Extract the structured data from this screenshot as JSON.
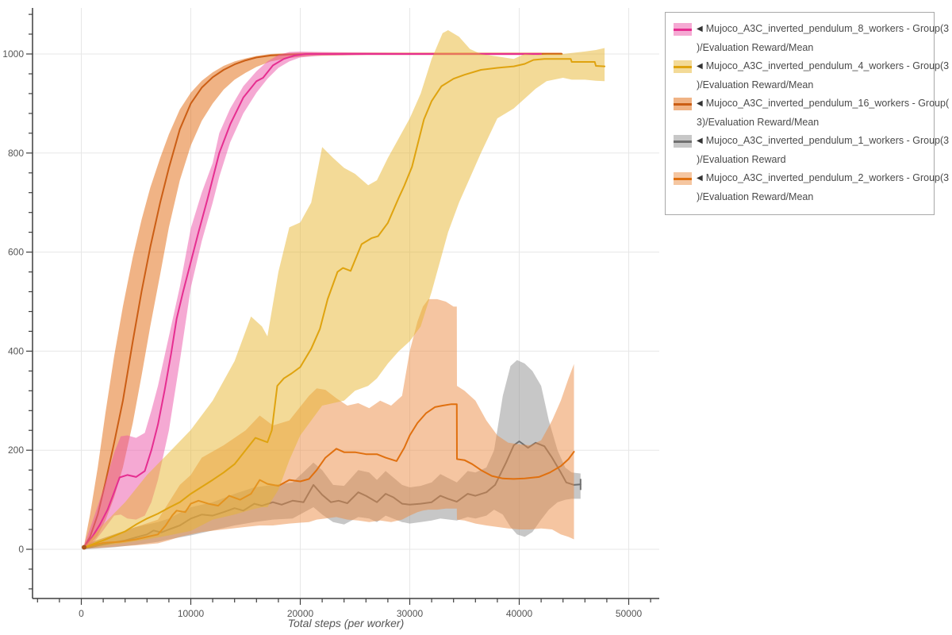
{
  "legend_marker": "◀",
  "chart_data": {
    "type": "line",
    "title": "",
    "xlabel": "Total steps (per worker)",
    "ylabel": "",
    "x_ticks": [
      0,
      10000,
      20000,
      30000,
      40000,
      50000
    ],
    "x_tick_labels": [
      "0",
      "10000",
      "20000",
      "30000",
      "40000",
      "50000"
    ],
    "y_ticks": [
      0,
      200,
      400,
      600,
      800,
      1000
    ],
    "y_tick_labels": [
      "0",
      "200",
      "400",
      "600",
      "800",
      "1000"
    ],
    "x_range": [
      -4450,
      52700
    ],
    "y_range": [
      -100,
      1095
    ],
    "x_minor_step": 2000,
    "y_minor_step": 40,
    "grid": true,
    "legend_position": "top-right",
    "grid_color": "#e7e7e7",
    "axis_color": "#3d3d3d",
    "start_marker": {
      "x": 250,
      "y": 4,
      "color": "#a8561c"
    },
    "series": [
      {
        "id": "w8",
        "label": "Mujoco_A3C_inverted_pendulum_8_workers - Group(3)/Evaluation Reward/Mean",
        "legend_lines": [
          "Mujoco_A3C_inverted_pendulum_8_workers - Group(3",
          ")/Evaluation Reward/Mean"
        ],
        "line_color": "#e62e90",
        "band_color": "#eb53a7",
        "x": [
          250,
          1000,
          1700,
          2400,
          3000,
          3500,
          4200,
          5000,
          5800,
          6400,
          7000,
          7600,
          8200,
          8700,
          9300,
          10000,
          10700,
          11500,
          12600,
          13600,
          14800,
          16000,
          16600,
          17500,
          18500,
          19500,
          20500,
          22000,
          26000,
          30000,
          34000,
          38000,
          42000
        ],
        "y": [
          4,
          25,
          50,
          80,
          115,
          145,
          150,
          146,
          158,
          200,
          252,
          320,
          395,
          465,
          520,
          580,
          640,
          705,
          800,
          858,
          912,
          945,
          952,
          977,
          990,
          997,
          1000,
          1000,
          1000,
          1000,
          1000,
          1000,
          1000
        ],
        "band_x": [
          250,
          1000,
          2000,
          3000,
          3600,
          4200,
          5000,
          5800,
          6400,
          7000,
          8000,
          9000,
          10000,
          11000,
          12000,
          12600,
          13600,
          14800,
          16000,
          17000,
          18000,
          19000,
          20000,
          22000,
          26000,
          30000,
          35000,
          40000,
          42000
        ],
        "band_upper": [
          8,
          55,
          120,
          195,
          228,
          230,
          225,
          235,
          280,
          330,
          430,
          530,
          648,
          720,
          780,
          840,
          890,
          935,
          965,
          985,
          998,
          1004,
          1005,
          1004,
          1003,
          1002,
          1002,
          1002,
          1002
        ],
        "band_lower": [
          1,
          10,
          38,
          68,
          70,
          62,
          60,
          68,
          95,
          140,
          240,
          380,
          528,
          622,
          700,
          752,
          822,
          880,
          922,
          950,
          972,
          985,
          993,
          997,
          998,
          998,
          998,
          998,
          998
        ]
      },
      {
        "id": "w4",
        "label": "Mujoco_A3C_inverted_pendulum_4_workers - Group(3)/Evaluation Reward/Mean",
        "legend_lines": [
          "Mujoco_A3C_inverted_pendulum_4_workers - Group(3",
          ")/Evaluation Reward/Mean"
        ],
        "line_color": "#dfa30f",
        "band_color": "#e7b52f",
        "x": [
          250,
          1000,
          2000,
          3000,
          4000,
          5000,
          6000,
          7000,
          8000,
          9000,
          10000,
          11000,
          12000,
          13000,
          14000,
          15000,
          15900,
          17000,
          17400,
          17900,
          18500,
          19200,
          20000,
          21000,
          21800,
          22500,
          23400,
          23900,
          24600,
          25600,
          26500,
          27100,
          28000,
          29000,
          29500,
          30200,
          31300,
          32000,
          32900,
          34000,
          35000,
          36500,
          38000,
          39500,
          40500,
          41300,
          42300,
          43500,
          44700,
          44800,
          46000,
          46900,
          47000,
          47800
        ],
        "y": [
          3,
          10,
          18,
          27,
          36,
          50,
          62,
          72,
          84,
          95,
          112,
          126,
          140,
          155,
          172,
          200,
          225,
          216,
          240,
          330,
          345,
          355,
          368,
          405,
          445,
          505,
          560,
          568,
          562,
          616,
          628,
          632,
          659,
          710,
          734,
          772,
          868,
          905,
          935,
          950,
          958,
          968,
          972,
          975,
          980,
          988,
          990,
          990,
          990,
          984,
          984,
          984,
          976,
          975
        ],
        "band_x": [
          250,
          1000,
          2000,
          4000,
          6000,
          8000,
          10000,
          12000,
          14000,
          15500,
          16500,
          17000,
          18000,
          19000,
          20000,
          21000,
          22000,
          23000,
          24000,
          25000,
          26200,
          27000,
          28000,
          29000,
          30000,
          31000,
          32000,
          33000,
          33500,
          34500,
          35500,
          36500,
          38000,
          39500,
          40500,
          41500,
          42500,
          44000,
          44800,
          46000,
          47000,
          47800
        ],
        "band_upper": [
          6,
          25,
          50,
          95,
          150,
          195,
          241,
          300,
          380,
          470,
          450,
          430,
          560,
          650,
          660,
          700,
          812,
          790,
          770,
          758,
          735,
          745,
          790,
          830,
          870,
          920,
          990,
          1042,
          1048,
          1035,
          1010,
          1000,
          995,
          990,
          1000,
          998,
          1000,
          1000,
          1002,
          1005,
          1008,
          1012
        ],
        "band_lower": [
          1,
          4,
          7,
          13,
          20,
          28,
          37,
          60,
          70,
          80,
          85,
          85,
          120,
          180,
          230,
          260,
          290,
          295,
          300,
          320,
          330,
          345,
          375,
          400,
          420,
          450,
          520,
          600,
          640,
          700,
          750,
          800,
          870,
          890,
          910,
          930,
          945,
          952,
          948,
          948,
          946,
          945
        ]
      },
      {
        "id": "w16",
        "label": "Mujoco_A3C_inverted_pendulum_16_workers - Group(3)/Evaluation Reward/Mean",
        "legend_lines": [
          "Mujoco_A3C_inverted_pendulum_16_workers - Group(",
          "3)/Evaluation Reward/Mean"
        ],
        "line_color": "#cb5e15",
        "band_color": "#e1670b",
        "x": [
          250,
          800,
          1500,
          2200,
          3000,
          3800,
          4700,
          5500,
          6300,
          7200,
          8000,
          9000,
          10000,
          11000,
          12000,
          13000,
          14000,
          15000,
          16000,
          17300,
          19000,
          21000,
          26000,
          32000,
          38000,
          43900
        ],
        "y": [
          4,
          25,
          70,
          135,
          215,
          300,
          420,
          520,
          610,
          700,
          770,
          848,
          900,
          932,
          953,
          968,
          979,
          987,
          993,
          997,
          999,
          1000,
          1000,
          1000,
          1000,
          1000
        ],
        "band_x": [
          250,
          800,
          1500,
          2200,
          3000,
          3800,
          4700,
          5500,
          6300,
          7200,
          8000,
          9000,
          10000,
          11000,
          12000,
          13000,
          14000,
          15000,
          16000,
          17300,
          19000,
          21000,
          26000,
          32000,
          38000,
          43900
        ],
        "band_upper": [
          8,
          70,
          165,
          275,
          390,
          490,
          590,
          665,
          730,
          790,
          838,
          888,
          922,
          946,
          963,
          976,
          985,
          991,
          996,
          1000,
          1002,
          1003,
          1003,
          1003,
          1003,
          1003
        ],
        "band_lower": [
          1,
          10,
          28,
          58,
          105,
          165,
          255,
          350,
          450,
          555,
          650,
          745,
          815,
          865,
          900,
          928,
          948,
          962,
          974,
          985,
          992,
          996,
          998,
          998,
          998,
          998
        ]
      },
      {
        "id": "w1",
        "label": "Mujoco_A3C_inverted_pendulum_1_workers - Group(3)/Evaluation Reward",
        "legend_lines": [
          "Mujoco_A3C_inverted_pendulum_1_workers - Group(3",
          ")/Evaluation Reward"
        ],
        "line_color": "#707070",
        "band_color": "#8f8f8f",
        "end_tick": true,
        "x": [
          250,
          1000,
          2000,
          3000,
          4000,
          5000,
          6000,
          6600,
          7300,
          8000,
          9000,
          10000,
          11000,
          12000,
          13000,
          14000,
          14800,
          15800,
          16500,
          17500,
          18300,
          19300,
          20300,
          21200,
          22000,
          22800,
          23500,
          24300,
          25300,
          26000,
          27000,
          27800,
          28500,
          29300,
          30000,
          31000,
          32000,
          32800,
          33500,
          34300,
          35300,
          36000,
          37000,
          37800,
          38800,
          39500,
          40000,
          40800,
          41500,
          42300,
          43000,
          43800,
          44300,
          45000,
          45600
        ],
        "y": [
          2,
          5,
          10,
          14,
          18,
          24,
          30,
          38,
          34,
          40,
          48,
          62,
          70,
          68,
          75,
          83,
          78,
          92,
          88,
          95,
          90,
          98,
          95,
          130,
          110,
          95,
          98,
          93,
          115,
          108,
          95,
          112,
          105,
          92,
          90,
          92,
          95,
          108,
          102,
          96,
          112,
          108,
          115,
          130,
          175,
          210,
          218,
          205,
          215,
          208,
          185,
          155,
          135,
          130,
          131
        ],
        "band_x": [
          250,
          1000,
          3000,
          5000,
          7000,
          8000,
          10000,
          12000,
          14000,
          15800,
          17500,
          19300,
          21200,
          22000,
          23000,
          24000,
          25300,
          26300,
          27000,
          27800,
          29300,
          30000,
          31000,
          32000,
          32800,
          34300,
          35300,
          36000,
          37000,
          37700,
          38500,
          39200,
          39800,
          40500,
          41200,
          42000,
          42700,
          43500,
          44200,
          44800,
          45600
        ],
        "band_upper": [
          5,
          15,
          30,
          45,
          55,
          62,
          85,
          95,
          112,
          125,
          130,
          135,
          175,
          160,
          130,
          128,
          160,
          155,
          140,
          158,
          130,
          125,
          128,
          135,
          152,
          135,
          158,
          155,
          165,
          200,
          310,
          370,
          382,
          375,
          360,
          330,
          260,
          200,
          165,
          155,
          153
        ],
        "band_lower": [
          0,
          1,
          4,
          9,
          15,
          20,
          28,
          38,
          48,
          55,
          60,
          62,
          85,
          70,
          55,
          50,
          65,
          62,
          55,
          68,
          55,
          52,
          55,
          58,
          62,
          58,
          65,
          62,
          68,
          80,
          70,
          45,
          30,
          25,
          35,
          60,
          80,
          95,
          100,
          102,
          102
        ]
      },
      {
        "id": "w2",
        "label": "Mujoco_A3C_inverted_pendulum_2_workers - Group(3)/Evaluation Reward/Mean",
        "legend_lines": [
          "Mujoco_A3C_inverted_pendulum_2_workers - Group(3",
          ")/Evaluation Reward/Mean"
        ],
        "line_color": "#e0700f",
        "band_color": "#eb8c43",
        "x": [
          250,
          1000,
          2000,
          3500,
          5000,
          6000,
          7000,
          7700,
          8300,
          8700,
          9500,
          10000,
          10700,
          11600,
          12500,
          13500,
          14500,
          15500,
          16300,
          17000,
          18000,
          19000,
          20000,
          20800,
          21500,
          22300,
          23300,
          24000,
          25000,
          26000,
          27000,
          27800,
          28800,
          29500,
          30000,
          30700,
          31500,
          32300,
          33000,
          33800,
          34300,
          34310,
          35000,
          35700,
          36500,
          37500,
          38500,
          39500,
          40500,
          41800,
          42800,
          43800,
          44500,
          45000
        ],
        "y": [
          3,
          8,
          13,
          15,
          20,
          25,
          30,
          48,
          68,
          78,
          75,
          92,
          98,
          92,
          88,
          108,
          100,
          112,
          140,
          132,
          128,
          140,
          137,
          142,
          160,
          185,
          203,
          196,
          196,
          192,
          192,
          185,
          178,
          205,
          230,
          255,
          275,
          287,
          290,
          293,
          293,
          182,
          180,
          172,
          160,
          148,
          143,
          142,
          143,
          146,
          155,
          168,
          182,
          197
        ],
        "band_x": [
          250,
          1000,
          3000,
          5000,
          7000,
          8000,
          9000,
          10000,
          11000,
          13000,
          15000,
          16300,
          17500,
          19000,
          20800,
          21500,
          22300,
          23300,
          24300,
          25300,
          26300,
          27300,
          28300,
          29300,
          30000,
          30700,
          31200,
          31700,
          32500,
          33300,
          34000,
          34300,
          34310,
          35000,
          36000,
          37000,
          38000,
          39000,
          40000,
          41000,
          42000,
          43000,
          43800,
          44500,
          45000
        ],
        "band_upper": [
          6,
          15,
          30,
          45,
          60,
          95,
          130,
          150,
          185,
          210,
          240,
          270,
          250,
          260,
          310,
          325,
          322,
          305,
          290,
          295,
          285,
          300,
          290,
          310,
          400,
          460,
          490,
          505,
          505,
          500,
          490,
          490,
          330,
          320,
          300,
          260,
          230,
          215,
          212,
          210,
          220,
          260,
          300,
          345,
          374
        ],
        "band_lower": [
          1,
          2,
          5,
          8,
          12,
          18,
          25,
          30,
          35,
          40,
          45,
          48,
          48,
          52,
          55,
          60,
          62,
          65,
          60,
          58,
          55,
          58,
          55,
          60,
          68,
          75,
          78,
          80,
          80,
          82,
          82,
          82,
          60,
          58,
          52,
          48,
          45,
          42,
          40,
          40,
          42,
          40,
          30,
          25,
          20
        ]
      }
    ]
  }
}
